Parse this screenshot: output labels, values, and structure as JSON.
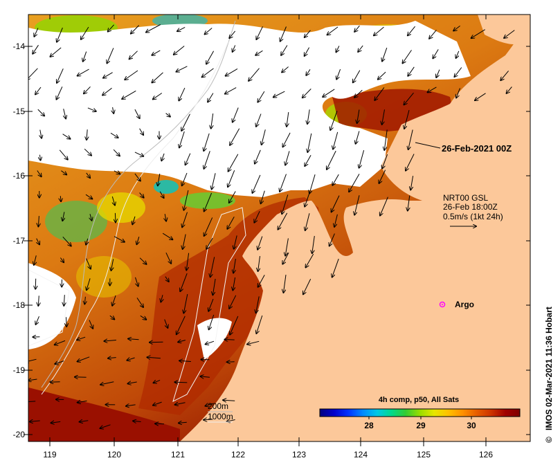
{
  "map": {
    "lon_ticks": [
      "119",
      "120",
      "121",
      "122",
      "123",
      "124",
      "125",
      "126"
    ],
    "lat_ticks": [
      "-14",
      "-15",
      "-16",
      "-17",
      "-18",
      "-19",
      "-20"
    ],
    "date_label": "26-Feb-2021 00Z",
    "current_legend": {
      "line1": "NRT00 GSL",
      "line2": "26-Feb 18:00Z",
      "line3": "0.5m/s (1kt 24h)"
    },
    "argo_label": "Argo",
    "depth_legend": {
      "line1": "200m",
      "line2": "1000m"
    },
    "colorbar": {
      "title": "4h comp, p50, All Sats",
      "ticks": [
        "28",
        "29",
        "30"
      ],
      "colors": [
        "#00007f",
        "#0000cc",
        "#0033ff",
        "#0088ff",
        "#00c8e6",
        "#00d98c",
        "#33cc33",
        "#99dd00",
        "#e6e600",
        "#ffc000",
        "#ff9000",
        "#e65c00",
        "#cc3300",
        "#a00000",
        "#7f0000"
      ]
    },
    "credit": "IMOS 02-Mar-2021 11:36 Hobart",
    "colors": {
      "land": "#fcc89a",
      "sea_warm": "#e08a1c",
      "sea_hot": "#a01000",
      "cloud": "#ffffff",
      "argo": "#ff00ff"
    }
  }
}
